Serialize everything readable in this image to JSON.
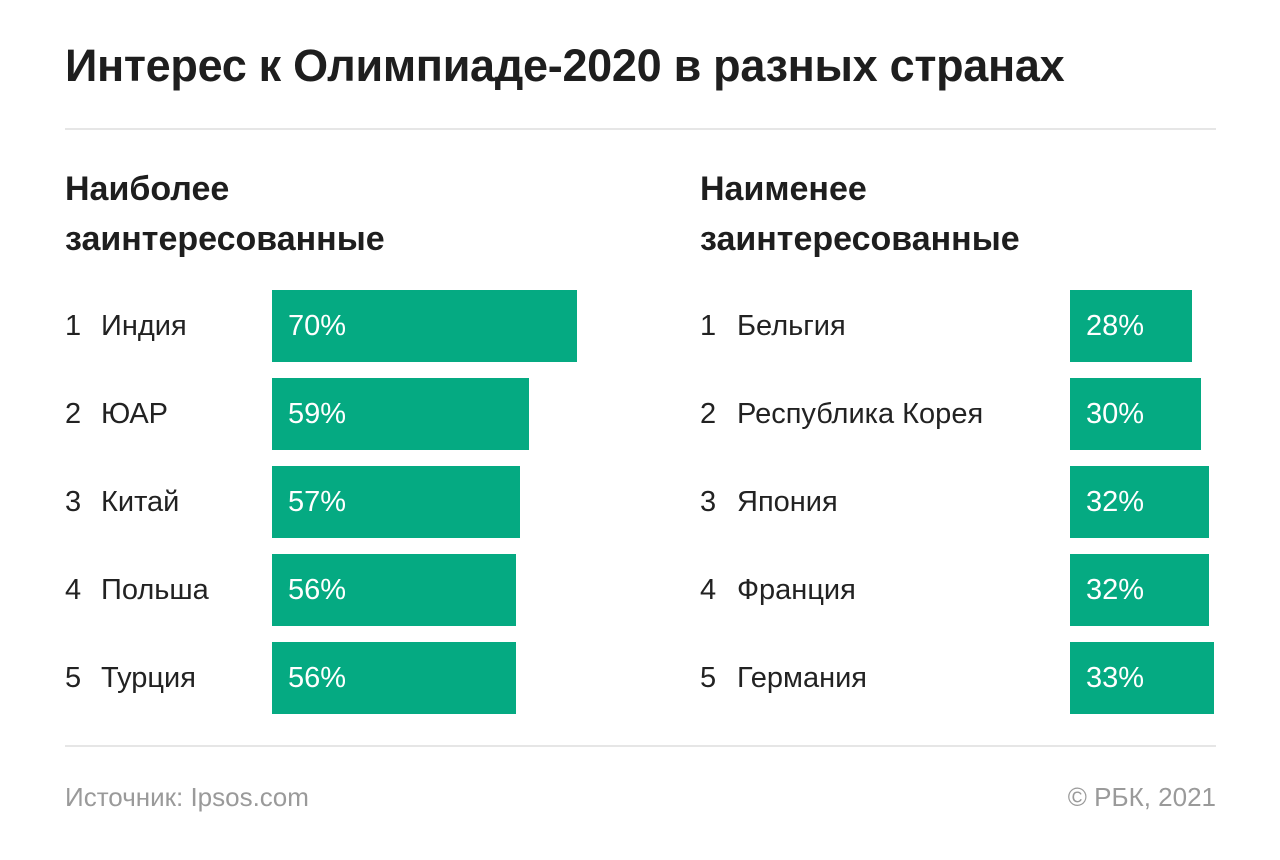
{
  "title": "Интерес к Олимпиаде-2020 в разных странах",
  "footer": {
    "source": "Источник: Ipsos.com",
    "copyright": "© РБК, 2021"
  },
  "colors": {
    "bar": "#05AA82"
  },
  "chart_data": [
    {
      "type": "bar",
      "orientation": "horizontal",
      "title": "Наиболее заинтересованные",
      "title_lines": [
        "Наиболее",
        "заинтересованные"
      ],
      "ranks": [
        "1",
        "2",
        "3",
        "4",
        "5"
      ],
      "categories": [
        "Индия",
        "ЮАР",
        "Китай",
        "Польша",
        "Турция"
      ],
      "values": [
        70,
        59,
        57,
        56,
        56
      ],
      "labels": [
        "70%",
        "59%",
        "57%",
        "56%",
        "56%"
      ],
      "unit": "%"
    },
    {
      "type": "bar",
      "orientation": "horizontal",
      "title": "Наименее заинтересованные",
      "title_lines": [
        "Наименее",
        "заинтересованные"
      ],
      "ranks": [
        "1",
        "2",
        "3",
        "4",
        "5"
      ],
      "categories": [
        "Бельгия",
        "Республика Корея",
        "Япония",
        "Франция",
        "Германия"
      ],
      "values": [
        28,
        30,
        32,
        32,
        33
      ],
      "labels": [
        "28%",
        "30%",
        "32%",
        "32%",
        "33%"
      ],
      "unit": "%"
    }
  ]
}
